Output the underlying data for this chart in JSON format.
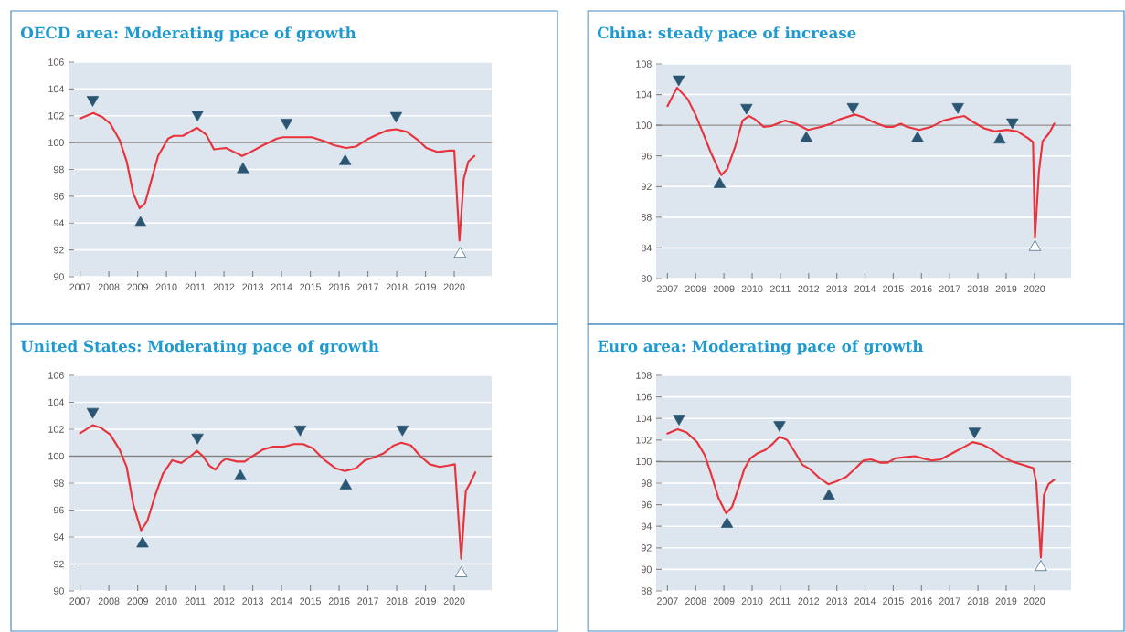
{
  "chart_data": [
    {
      "type": "line",
      "title": "OECD area: Moderating pace of growth",
      "xlim": [
        2006.6,
        2021.3
      ],
      "ylim": [
        90,
        106
      ],
      "yticks": [
        90,
        92,
        94,
        96,
        98,
        100,
        102,
        104,
        106
      ],
      "xticks": [
        2007,
        2008,
        2009,
        2010,
        2011,
        2012,
        2013,
        2014,
        2015,
        2016,
        2017,
        2018,
        2019,
        2020
      ],
      "grid": "y",
      "ref_lines": [
        {
          "axis": "y",
          "value": 100,
          "color": "#808080"
        }
      ],
      "series": [
        {
          "color": "#e8323c",
          "marker": "none",
          "x": [
            2007.0,
            2007.46,
            2007.78,
            2008.05,
            2008.37,
            2008.62,
            2008.85,
            2009.07,
            2009.26,
            2009.44,
            2009.71,
            2010.06,
            2010.25,
            2010.57,
            2011.06,
            2011.38,
            2011.65,
            2012.07,
            2012.63,
            2012.93,
            2013.36,
            2013.84,
            2014.05,
            2014.43,
            2014.64,
            2015.05,
            2015.5,
            2015.82,
            2016.24,
            2016.58,
            2017.03,
            2017.33,
            2017.65,
            2017.98,
            2018.35,
            2018.73,
            2019.03,
            2019.42,
            2019.8,
            2020.0,
            2020.18,
            2020.33,
            2020.49,
            2020.7
          ],
          "values": [
            101.8,
            102.2,
            101.9,
            101.4,
            100.2,
            98.6,
            96.2,
            95.1,
            95.5,
            96.9,
            99.0,
            100.3,
            100.5,
            100.5,
            101.1,
            100.6,
            99.5,
            99.6,
            99.0,
            99.3,
            99.8,
            100.3,
            100.4,
            100.4,
            100.4,
            100.4,
            100.1,
            99.8,
            99.6,
            99.7,
            100.3,
            100.6,
            100.9,
            101.0,
            100.8,
            100.2,
            99.6,
            99.3,
            99.4,
            99.4,
            92.7,
            97.3,
            98.6,
            99.0
          ]
        },
        {
          "type": "scatter",
          "color": "#2b5673",
          "marker": "triangle-down",
          "x": [
            2007.44,
            2011.08,
            2014.17,
            2017.98
          ],
          "values": [
            103.2,
            102.1,
            101.5,
            102.0
          ]
        },
        {
          "type": "scatter",
          "color": "#2b5673",
          "marker": "triangle",
          "x": [
            2009.1,
            2012.66,
            2016.21
          ],
          "values": [
            94.0,
            98.0,
            98.6
          ]
        },
        {
          "type": "scatter",
          "color": "#ffffff",
          "marker": "triangle",
          "x": [
            2020.2
          ],
          "values": [
            91.7
          ]
        }
      ]
    },
    {
      "type": "line",
      "title": "China: steady pace of increase",
      "xlim": [
        2006.6,
        2021.3
      ],
      "ylim": [
        80,
        108
      ],
      "yticks": [
        80,
        84,
        88,
        92,
        96,
        100,
        104,
        108
      ],
      "xticks": [
        2007,
        2008,
        2009,
        2010,
        2011,
        2012,
        2013,
        2014,
        2015,
        2016,
        2017,
        2018,
        2019,
        2020
      ],
      "grid": "y",
      "ref_lines": [
        {
          "axis": "y",
          "value": 100,
          "color": "#808080"
        }
      ],
      "series": [
        {
          "color": "#e8323c",
          "marker": "none",
          "x": [
            2007.0,
            2007.34,
            2007.72,
            2007.99,
            2008.26,
            2008.53,
            2008.8,
            2008.91,
            2009.12,
            2009.39,
            2009.66,
            2009.88,
            2010.09,
            2010.41,
            2010.68,
            2011.17,
            2011.55,
            2011.98,
            2012.46,
            2012.79,
            2013.11,
            2013.65,
            2013.97,
            2014.3,
            2014.73,
            2015.0,
            2015.27,
            2015.48,
            2015.92,
            2016.35,
            2016.77,
            2017.2,
            2017.52,
            2017.84,
            2018.22,
            2018.6,
            2019.03,
            2019.4,
            2019.78,
            2019.95,
            2020.02,
            2020.16,
            2020.29,
            2020.53,
            2020.7
          ],
          "values": [
            102.5,
            104.9,
            103.4,
            101.4,
            99.0,
            96.5,
            94.3,
            93.5,
            94.3,
            97.1,
            100.6,
            101.2,
            100.8,
            99.8,
            99.9,
            100.6,
            100.2,
            99.4,
            99.8,
            100.2,
            100.8,
            101.4,
            101.0,
            100.4,
            99.8,
            99.8,
            100.2,
            99.8,
            99.4,
            99.8,
            100.6,
            101.0,
            101.2,
            100.4,
            99.6,
            99.2,
            99.4,
            99.2,
            98.3,
            97.8,
            85.3,
            93.9,
            97.9,
            99.0,
            100.2
          ]
        },
        {
          "type": "scatter",
          "color": "#2b5673",
          "marker": "triangle-down",
          "x": [
            2007.4,
            2009.8,
            2013.57,
            2017.29,
            2019.22
          ],
          "values": [
            106.0,
            102.3,
            102.4,
            102.4,
            100.4
          ]
        },
        {
          "type": "scatter",
          "color": "#2b5673",
          "marker": "triangle",
          "x": [
            2008.85,
            2011.92,
            2015.86,
            2018.77
          ],
          "values": [
            92.3,
            98.3,
            98.3,
            98.1
          ]
        },
        {
          "type": "scatter",
          "color": "#ffffff",
          "marker": "triangle",
          "x": [
            2020.02
          ],
          "values": [
            84.1
          ]
        }
      ]
    },
    {
      "type": "line",
      "title": "United States: Moderating pace of growth",
      "xlim": [
        2006.6,
        2021.3
      ],
      "ylim": [
        90,
        106
      ],
      "yticks": [
        90,
        92,
        94,
        96,
        98,
        100,
        102,
        104,
        106
      ],
      "xticks": [
        2007,
        2008,
        2009,
        2010,
        2011,
        2012,
        2013,
        2014,
        2015,
        2016,
        2017,
        2018,
        2019,
        2020
      ],
      "grid": "y",
      "ref_lines": [
        {
          "axis": "y",
          "value": 100,
          "color": "#808080"
        }
      ],
      "series": [
        {
          "color": "#e8323c",
          "marker": "none",
          "x": [
            2007.0,
            2007.44,
            2007.73,
            2008.05,
            2008.37,
            2008.62,
            2008.85,
            2009.12,
            2009.34,
            2009.61,
            2009.88,
            2010.2,
            2010.52,
            2010.84,
            2011.06,
            2011.27,
            2011.49,
            2011.7,
            2011.92,
            2012.07,
            2012.45,
            2012.72,
            2012.99,
            2013.36,
            2013.68,
            2014.06,
            2014.43,
            2014.75,
            2015.08,
            2015.5,
            2015.88,
            2016.2,
            2016.58,
            2016.9,
            2017.2,
            2017.54,
            2017.9,
            2018.16,
            2018.5,
            2018.82,
            2019.15,
            2019.5,
            2019.78,
            2020.02,
            2020.24,
            2020.4,
            2020.55,
            2020.73
          ],
          "values": [
            101.7,
            102.3,
            102.1,
            101.6,
            100.5,
            99.2,
            96.4,
            94.5,
            95.2,
            97.1,
            98.7,
            99.7,
            99.5,
            100.0,
            100.4,
            100.0,
            99.3,
            99.0,
            99.6,
            99.8,
            99.6,
            99.6,
            100.0,
            100.5,
            100.7,
            100.7,
            100.9,
            100.9,
            100.6,
            99.7,
            99.1,
            98.9,
            99.1,
            99.7,
            99.9,
            100.2,
            100.8,
            101.0,
            100.8,
            100.0,
            99.4,
            99.2,
            99.3,
            99.4,
            92.4,
            97.4,
            98.0,
            98.8
          ]
        },
        {
          "type": "scatter",
          "color": "#2b5673",
          "marker": "triangle-down",
          "x": [
            2007.44,
            2011.08,
            2014.65,
            2018.2
          ],
          "values": [
            103.3,
            101.4,
            102.0,
            102.0
          ]
        },
        {
          "type": "scatter",
          "color": "#2b5673",
          "marker": "triangle",
          "x": [
            2009.17,
            2012.57,
            2016.23
          ],
          "values": [
            93.5,
            98.5,
            97.8
          ]
        },
        {
          "type": "scatter",
          "color": "#ffffff",
          "marker": "triangle",
          "x": [
            2020.24
          ],
          "values": [
            91.3
          ]
        }
      ]
    },
    {
      "type": "line",
      "title": "Euro area: Moderating pace of growth",
      "xlim": [
        2006.6,
        2021.3
      ],
      "ylim": [
        88,
        108
      ],
      "yticks": [
        88,
        90,
        92,
        94,
        96,
        98,
        100,
        102,
        104,
        106,
        108
      ],
      "xticks": [
        2007,
        2008,
        2009,
        2010,
        2011,
        2012,
        2013,
        2014,
        2015,
        2016,
        2017,
        2018,
        2019,
        2020
      ],
      "grid": "y",
      "ref_lines": [
        {
          "axis": "y",
          "value": 100,
          "color": "#808080"
        }
      ],
      "series": [
        {
          "color": "#e8323c",
          "marker": "none",
          "x": [
            2007.0,
            2007.36,
            2007.68,
            2008.05,
            2008.32,
            2008.54,
            2008.81,
            2009.08,
            2009.29,
            2009.51,
            2009.72,
            2009.94,
            2010.21,
            2010.48,
            2010.75,
            2010.97,
            2011.24,
            2011.51,
            2011.78,
            2012.05,
            2012.37,
            2012.7,
            2013.02,
            2013.34,
            2013.67,
            2013.94,
            2014.21,
            2014.53,
            2014.8,
            2015.07,
            2015.39,
            2015.77,
            2016.04,
            2016.36,
            2016.68,
            2017.11,
            2017.54,
            2017.81,
            2018.14,
            2018.51,
            2018.83,
            2019.21,
            2019.59,
            2019.96,
            2020.07,
            2020.23,
            2020.34,
            2020.5,
            2020.7
          ],
          "values": [
            102.6,
            103.0,
            102.7,
            101.8,
            100.6,
            98.9,
            96.6,
            95.2,
            95.8,
            97.5,
            99.3,
            100.3,
            100.8,
            101.1,
            101.7,
            102.3,
            102.0,
            100.9,
            99.7,
            99.3,
            98.5,
            97.9,
            98.2,
            98.6,
            99.4,
            100.1,
            100.2,
            99.9,
            99.9,
            100.3,
            100.4,
            100.5,
            100.3,
            100.1,
            100.2,
            100.8,
            101.4,
            101.8,
            101.6,
            101.1,
            100.5,
            100.0,
            99.7,
            99.4,
            98.0,
            91.1,
            96.9,
            97.9,
            98.3
          ]
        },
        {
          "type": "scatter",
          "color": "#2b5673",
          "marker": "triangle-down",
          "x": [
            2007.41,
            2010.97,
            2017.88
          ],
          "values": [
            104.0,
            103.4,
            102.8
          ]
        },
        {
          "type": "scatter",
          "color": "#2b5673",
          "marker": "triangle",
          "x": [
            2009.11,
            2012.72
          ],
          "values": [
            94.2,
            96.8
          ]
        },
        {
          "type": "scatter",
          "color": "#ffffff",
          "marker": "triangle",
          "x": [
            2020.23
          ],
          "values": [
            90.2
          ]
        }
      ]
    }
  ]
}
